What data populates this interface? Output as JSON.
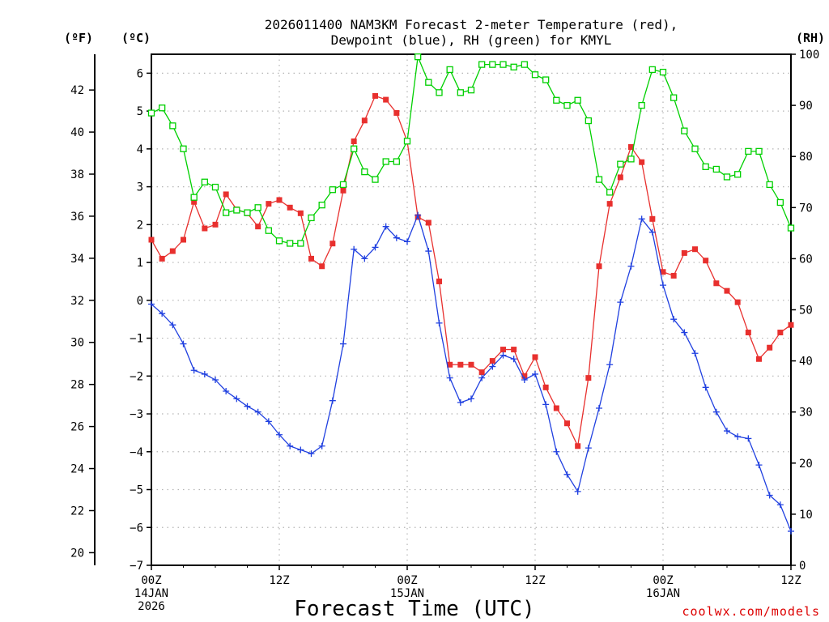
{
  "chart_data": {
    "type": "line",
    "title_line1": "2026011400 NAM3KM Forecast 2-meter Temperature (red),",
    "title_line2": "Dewpoint (blue), RH (green) for KMYL",
    "xlabel": "Forecast Time (UTC)",
    "credit": "coolwx.com/models",
    "units": {
      "fahrenheit": "(ºF)",
      "celsius": "(ºC)",
      "rh": "(RH)"
    },
    "x_range_hours": [
      0,
      60
    ],
    "y_celsius_range": [
      -7,
      6.5
    ],
    "y_rh_range": [
      0,
      100
    ],
    "celsius_ticks": [
      "−7",
      "−6",
      "−5",
      "−4",
      "−3",
      "−2",
      "−1",
      "0",
      "1",
      "2",
      "3",
      "4",
      "5",
      "6"
    ],
    "fahrenheit_ticks": [
      "20",
      "22",
      "24",
      "26",
      "28",
      "30",
      "32",
      "34",
      "36",
      "38",
      "40",
      "42"
    ],
    "rh_ticks": [
      "0",
      "10",
      "20",
      "30",
      "40",
      "50",
      "60",
      "70",
      "80",
      "90",
      "100"
    ],
    "x_ticks": [
      {
        "h": 0,
        "line1": "00Z",
        "line2": "14JAN",
        "line3": "2026"
      },
      {
        "h": 12,
        "line1": "12Z",
        "line2": "",
        "line3": ""
      },
      {
        "h": 24,
        "line1": "00Z",
        "line2": "15JAN",
        "line3": ""
      },
      {
        "h": 36,
        "line1": "12Z",
        "line2": "",
        "line3": ""
      },
      {
        "h": 48,
        "line1": "00Z",
        "line2": "16JAN",
        "line3": ""
      },
      {
        "h": 60,
        "line1": "12Z",
        "line2": "",
        "line3": ""
      }
    ],
    "series": [
      {
        "name": "2-meter Temperature",
        "color": "#e8302e",
        "marker": "filled-square",
        "axis": "celsius",
        "values": [
          1.6,
          1.1,
          1.3,
          1.6,
          2.6,
          1.9,
          2.0,
          2.8,
          2.4,
          2.3,
          1.95,
          2.55,
          2.65,
          2.45,
          2.3,
          1.1,
          0.9,
          1.5,
          2.9,
          4.2,
          4.75,
          5.4,
          5.3,
          4.95,
          4.2,
          2.2,
          2.05,
          0.5,
          -1.7,
          -1.7,
          -1.7,
          -1.9,
          -1.6,
          -1.3,
          -1.3,
          -2.0,
          -1.5,
          -2.3,
          -2.85,
          -3.25,
          -3.85,
          -2.05,
          0.9,
          2.55,
          3.25,
          4.05,
          3.65,
          2.15,
          0.75,
          0.65,
          1.25,
          1.35,
          1.05,
          0.45,
          0.25,
          -0.05,
          -0.85,
          -1.55,
          -1.25,
          -0.85,
          -0.65
        ]
      },
      {
        "name": "Dewpoint",
        "color": "#2040e0",
        "marker": "plus",
        "axis": "celsius",
        "values": [
          -0.1,
          -0.35,
          -0.65,
          -1.15,
          -1.85,
          -1.95,
          -2.1,
          -2.4,
          -2.6,
          -2.8,
          -2.95,
          -3.2,
          -3.55,
          -3.85,
          -3.95,
          -4.05,
          -3.85,
          -2.65,
          -1.15,
          1.35,
          1.1,
          1.4,
          1.95,
          1.65,
          1.55,
          2.25,
          1.3,
          -0.6,
          -2.05,
          -2.7,
          -2.6,
          -2.05,
          -1.75,
          -1.45,
          -1.55,
          -2.1,
          -1.95,
          -2.75,
          -4.0,
          -4.6,
          -5.05,
          -3.9,
          -2.85,
          -1.7,
          -0.05,
          0.9,
          2.15,
          1.8,
          0.4,
          -0.5,
          -0.85,
          -1.4,
          -2.3,
          -2.95,
          -3.45,
          -3.6,
          -3.65,
          -4.35,
          -5.15,
          -5.4,
          -6.1
        ]
      },
      {
        "name": "RH",
        "color": "#00d000",
        "marker": "open-square",
        "axis": "rh",
        "values": [
          88.5,
          89.5,
          86.0,
          81.5,
          72.0,
          75.0,
          74.0,
          69.0,
          69.5,
          69.0,
          70.0,
          65.5,
          63.5,
          63.0,
          63.0,
          68.0,
          70.5,
          73.5,
          74.5,
          81.5,
          77.0,
          75.5,
          79.0,
          79.0,
          83.0,
          99.5,
          94.5,
          92.5,
          97.0,
          92.5,
          93.0,
          98.0,
          98.0,
          98.0,
          97.5,
          98.0,
          96.0,
          95.0,
          91.0,
          90.0,
          91.0,
          87.0,
          75.5,
          73.0,
          78.5,
          79.5,
          90.0,
          97.0,
          96.5,
          91.5,
          85.0,
          81.5,
          78.0,
          77.5,
          76.0,
          76.5,
          81.0,
          81.0,
          74.5,
          71.0,
          66.0
        ]
      }
    ]
  }
}
